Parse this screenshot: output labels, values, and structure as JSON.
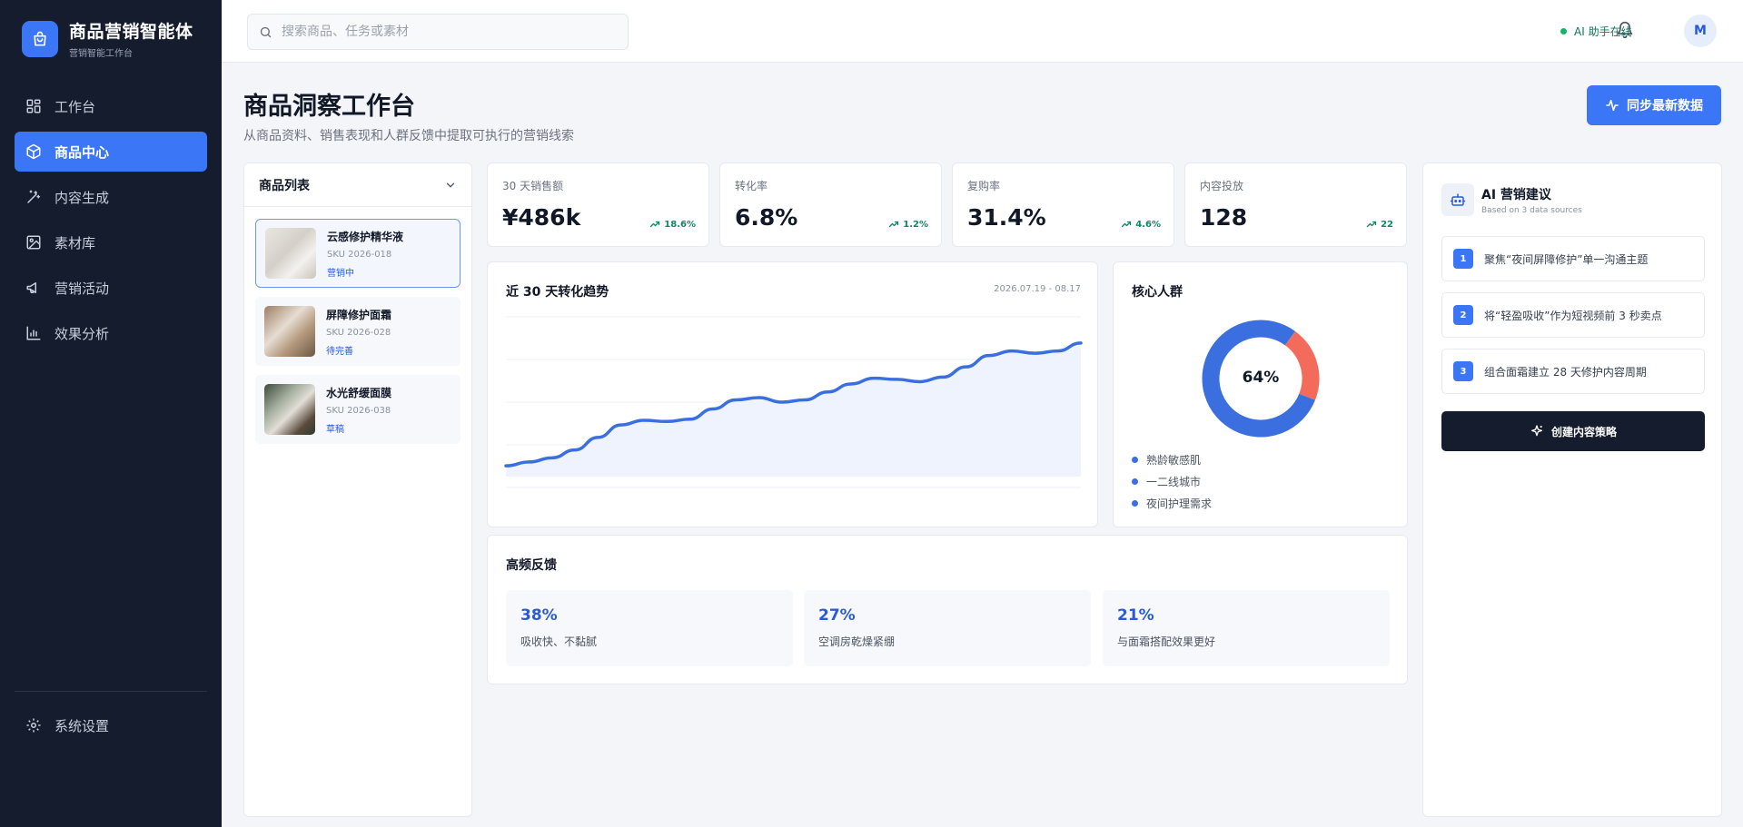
{
  "brand": {
    "title": "商品营销智能体",
    "subtitle": "营销智能工作台"
  },
  "nav": {
    "items": [
      {
        "label": "工作台",
        "icon": "grid-icon"
      },
      {
        "label": "商品中心",
        "icon": "box-icon",
        "active": true
      },
      {
        "label": "内容生成",
        "icon": "magic-wand-icon"
      },
      {
        "label": "素材库",
        "icon": "image-icon"
      },
      {
        "label": "营销活动",
        "icon": "megaphone-icon"
      },
      {
        "label": "效果分析",
        "icon": "bar-chart-icon"
      }
    ],
    "settings": {
      "label": "系统设置",
      "icon": "gear-icon"
    }
  },
  "header": {
    "search_placeholder": "搜索商品、任务或素材",
    "ai_status": "AI 助手在线",
    "avatar_initial": "M"
  },
  "page": {
    "title": "商品洞察工作台",
    "subtitle": "从商品资料、销售表现和人群反馈中提取可执行的营销线索",
    "sync_button": "同步最新数据"
  },
  "product_list": {
    "title": "商品列表",
    "items": [
      {
        "name": "云感修护精华液",
        "sku": "SKU 2026-018",
        "status": "营销中",
        "selected": true
      },
      {
        "name": "屏障修护面霜",
        "sku": "SKU 2026-028",
        "status": "待完善"
      },
      {
        "name": "水光舒缓面膜",
        "sku": "SKU 2026-038",
        "status": "草稿"
      }
    ]
  },
  "kpis": [
    {
      "label": "30 天销售额",
      "value": "¥486k",
      "delta": "18.6%"
    },
    {
      "label": "转化率",
      "value": "6.8%",
      "delta": "1.2%"
    },
    {
      "label": "复购率",
      "value": "31.4%",
      "delta": "4.6%"
    },
    {
      "label": "内容投放",
      "value": "128",
      "delta": "22"
    }
  ],
  "trend": {
    "title": "近 30 天转化趋势",
    "range": "2026.07.19 - 08.17"
  },
  "audience": {
    "title": "核心人群",
    "center_label": "64%",
    "legend": [
      "熟龄敏感肌",
      "一二线城市",
      "夜间护理需求"
    ]
  },
  "feedback": {
    "title": "高频反馈",
    "items": [
      {
        "percent": "38%",
        "text": "吸收快、不黏腻"
      },
      {
        "percent": "27%",
        "text": "空调房乾燥紧绷"
      },
      {
        "percent": "21%",
        "text": "与面霜搭配效果更好"
      }
    ]
  },
  "ai_panel": {
    "title": "AI 营销建议",
    "subtitle": "Based on 3 data sources",
    "suggestions": [
      {
        "num": "1",
        "text": "聚焦“夜间屏障修护”单一沟通主题"
      },
      {
        "num": "2",
        "text": "将“轻盈吸收”作为短视频前 3 秒卖点"
      },
      {
        "num": "3",
        "text": "组合面霜建立 28 天修护内容周期"
      }
    ],
    "create_button": "创建内容策略"
  },
  "colors": {
    "accent": "#3b76f6",
    "sidebar_bg": "#141c2e",
    "donut_primary": "#3b6fe0",
    "donut_secondary": "#f26b5b",
    "positive": "#0e8a5f"
  },
  "chart_data": [
    {
      "type": "area",
      "title": "近 30 天转化趋势",
      "x_range_label": "2026.07.19 - 08.17",
      "values": [
        9.5,
        11.2,
        13.0,
        16.5,
        22.0,
        27.5,
        29.5,
        29.0,
        30.0,
        34.5,
        38.5,
        39.5,
        37.5,
        38.5,
        42.0,
        45.5,
        48.0,
        47.5,
        46.5,
        48.5,
        53.0,
        58.0,
        60.0,
        59.0,
        60.0,
        63.5
      ],
      "ylim": [
        0,
        75
      ],
      "grid": true,
      "series_color": "#3b6fe0"
    },
    {
      "type": "pie",
      "title": "核心人群",
      "center_label": "64%",
      "slices": [
        {
          "label": "primary",
          "value": 79,
          "color": "#3b6fe0"
        },
        {
          "label": "secondary",
          "value": 21,
          "color": "#f26b5b"
        }
      ]
    }
  ]
}
